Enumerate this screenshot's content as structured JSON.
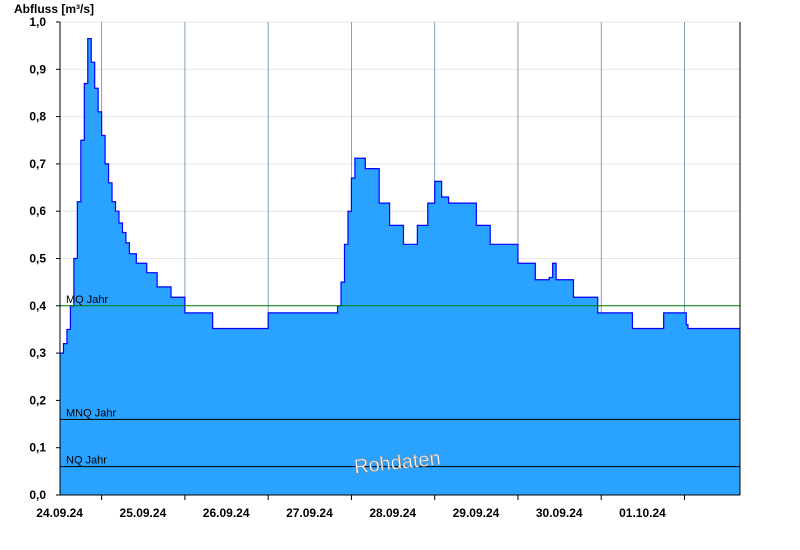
{
  "chart_data": {
    "type": "area",
    "ylabel": "Abfluss [m³/s]",
    "ylim": [
      0,
      1.0
    ],
    "yticks": [
      "0,0",
      "0,1",
      "0,2",
      "0,3",
      "0,4",
      "0,5",
      "0,6",
      "0,7",
      "0,8",
      "0,9",
      "1,0"
    ],
    "xlim": [
      "2024-09-23T12:00",
      "2024-10-01T16:00"
    ],
    "xticks": [
      {
        "label": "24.09.24",
        "date": "2024-09-24"
      },
      {
        "label": "25.09.24",
        "date": "2024-09-25"
      },
      {
        "label": "26.09.24",
        "date": "2024-09-26"
      },
      {
        "label": "27.09.24",
        "date": "2024-09-27"
      },
      {
        "label": "28.09.24",
        "date": "2024-09-28"
      },
      {
        "label": "29.09.24",
        "date": "2024-09-29"
      },
      {
        "label": "30.09.24",
        "date": "2024-09-30"
      },
      {
        "label": "01.10.24",
        "date": "2024-10-01"
      }
    ],
    "grid": true,
    "watermark": "Rohdaten",
    "reference_lines": [
      {
        "name": "MQ Jahr",
        "value": 0.4,
        "color": "#008000"
      },
      {
        "name": "MNQ Jahr",
        "value": 0.16,
        "color": "#000000"
      },
      {
        "name": "NQ Jahr",
        "value": 0.06,
        "color": "#000000"
      }
    ],
    "series": [
      {
        "fill_color": "#29a3ff",
        "line_color": "#0000ff",
        "x": [
          "2024-09-23T12:00",
          "2024-09-23T13:00",
          "2024-09-23T14:00",
          "2024-09-23T15:00",
          "2024-09-23T16:00",
          "2024-09-23T17:00",
          "2024-09-23T18:00",
          "2024-09-23T19:00",
          "2024-09-23T20:00",
          "2024-09-23T21:00",
          "2024-09-23T22:00",
          "2024-09-23T23:00",
          "2024-09-24T00:00",
          "2024-09-24T01:00",
          "2024-09-24T02:00",
          "2024-09-24T03:00",
          "2024-09-24T04:00",
          "2024-09-24T05:00",
          "2024-09-24T06:00",
          "2024-09-24T07:00",
          "2024-09-24T08:00",
          "2024-09-24T10:00",
          "2024-09-24T13:00",
          "2024-09-24T16:00",
          "2024-09-24T20:00",
          "2024-09-25T00:00",
          "2024-09-25T04:00",
          "2024-09-25T08:00",
          "2024-09-25T18:00",
          "2024-09-26T00:00",
          "2024-09-26T09:00",
          "2024-09-26T20:00",
          "2024-09-26T21:00",
          "2024-09-26T22:00",
          "2024-09-26T23:00",
          "2024-09-27T00:00",
          "2024-09-27T01:00",
          "2024-09-27T02:00",
          "2024-09-27T04:00",
          "2024-09-27T08:00",
          "2024-09-27T11:00",
          "2024-09-27T15:00",
          "2024-09-27T19:00",
          "2024-09-27T22:00",
          "2024-09-28T00:00",
          "2024-09-28T02:00",
          "2024-09-28T04:00",
          "2024-09-28T08:00",
          "2024-09-28T12:00",
          "2024-09-28T16:00",
          "2024-09-29T00:00",
          "2024-09-29T05:00",
          "2024-09-29T09:00",
          "2024-09-29T10:00",
          "2024-09-29T11:00",
          "2024-09-29T16:00",
          "2024-09-29T23:00",
          "2024-09-30T09:00",
          "2024-09-30T18:00",
          "2024-10-01T00:00",
          "2024-10-01T00:30",
          "2024-10-01T01:00",
          "2024-10-01T16:00"
        ],
        "values": [
          0.3,
          0.32,
          0.35,
          0.4,
          0.5,
          0.62,
          0.75,
          0.87,
          0.965,
          0.915,
          0.86,
          0.81,
          0.76,
          0.7,
          0.66,
          0.62,
          0.6,
          0.575,
          0.555,
          0.533,
          0.51,
          0.49,
          0.47,
          0.44,
          0.418,
          0.385,
          0.385,
          0.352,
          0.352,
          0.385,
          0.385,
          0.4,
          0.45,
          0.53,
          0.6,
          0.67,
          0.712,
          0.712,
          0.69,
          0.617,
          0.57,
          0.53,
          0.57,
          0.617,
          0.663,
          0.63,
          0.617,
          0.617,
          0.57,
          0.53,
          0.49,
          0.455,
          0.46,
          0.49,
          0.455,
          0.418,
          0.385,
          0.352,
          0.385,
          0.385,
          0.36,
          0.352,
          0.352
        ]
      }
    ]
  }
}
